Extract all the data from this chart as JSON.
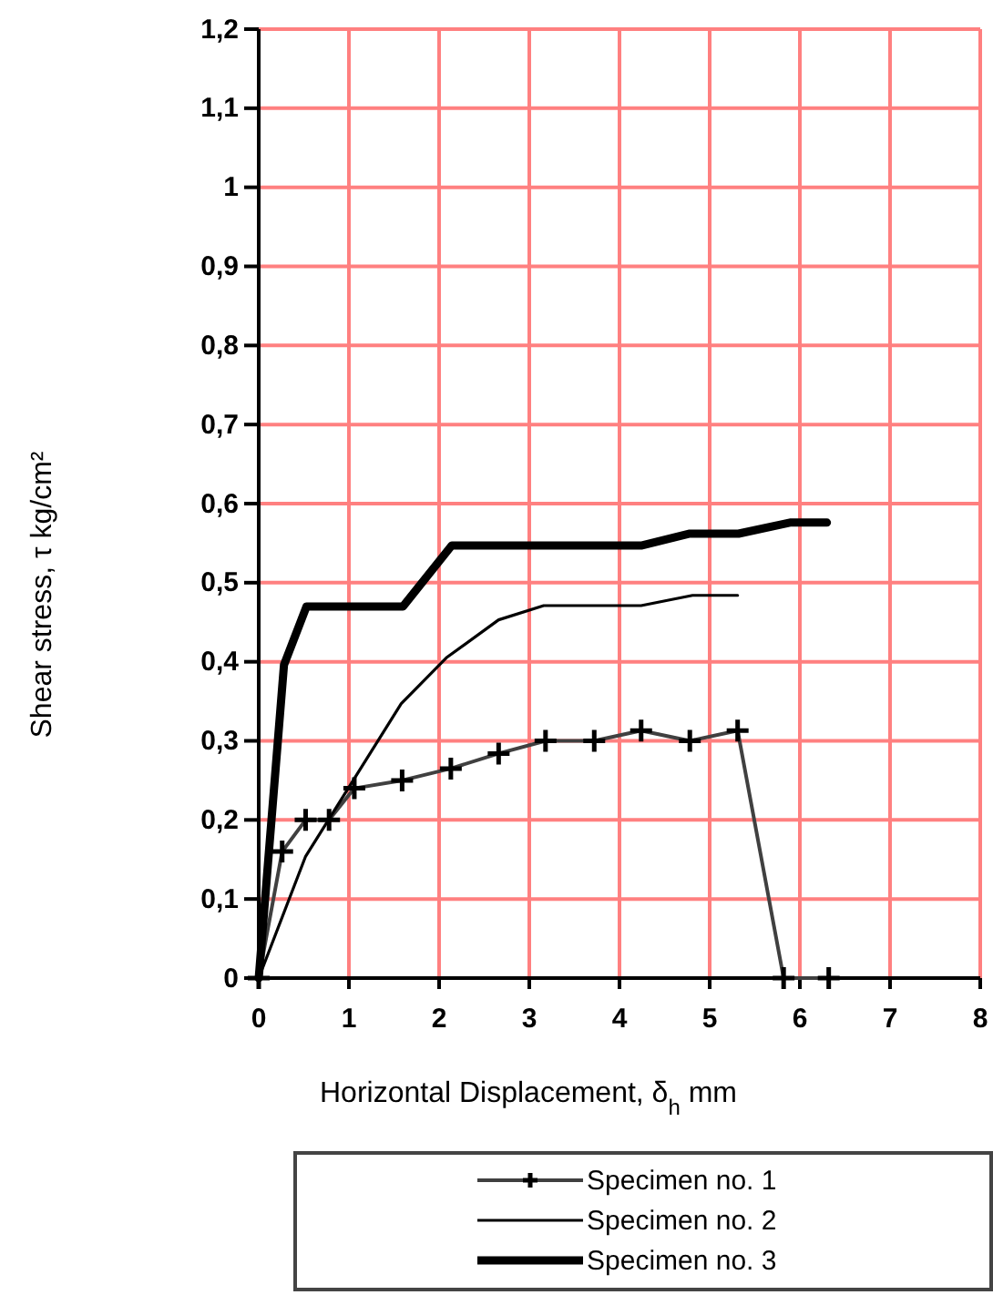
{
  "chart_data": {
    "type": "line",
    "xlabel": "Horizontal Displacement, δ$_{h}$ mm",
    "ylabel": "Shear stress, τ kg/cm²",
    "xlim": [
      0,
      8
    ],
    "xticks": [
      0,
      1,
      2,
      3,
      4,
      5,
      6,
      7,
      8
    ],
    "ylim": [
      0,
      1.2
    ],
    "yticks": [
      {
        "value": 0,
        "label": "0"
      },
      {
        "value": 0.1,
        "label": "0,1"
      },
      {
        "value": 0.2,
        "label": "0,2"
      },
      {
        "value": 0.3,
        "label": "0,3"
      },
      {
        "value": 0.4,
        "label": "0,4"
      },
      {
        "value": 0.5,
        "label": "0,5"
      },
      {
        "value": 0.6,
        "label": "0,6"
      },
      {
        "value": 0.7,
        "label": "0,7"
      },
      {
        "value": 0.8,
        "label": "0,8"
      },
      {
        "value": 0.9,
        "label": "0,9"
      },
      {
        "value": 1,
        "label": "1"
      },
      {
        "value": 1.1,
        "label": "1,1"
      },
      {
        "value": 1.2,
        "label": "1,2"
      }
    ],
    "grid": true,
    "legend": "bottom",
    "line_style": "solid",
    "series": [
      {
        "name": "Specimen no. 1",
        "color": "#404040",
        "marker": "cross",
        "x": [
          0,
          0.26,
          0.52,
          0.78,
          1.06,
          1.59,
          2.13,
          2.66,
          3.18,
          3.72,
          4.24,
          4.78,
          5.31,
          5.82,
          6.32
        ],
        "values": [
          0,
          0.16,
          0.2,
          0.2,
          0.24,
          0.25,
          0.265,
          0.284,
          0.3,
          0.3,
          0.313,
          0.3,
          0.313,
          0,
          0
        ]
      },
      {
        "name": "Specimen no. 2",
        "color": "#000000",
        "marker": "none",
        "x": [
          0,
          0.52,
          1.58,
          2.08,
          2.66,
          3.16,
          4.24,
          4.81,
          5.31
        ],
        "values": [
          0,
          0.154,
          0.347,
          0.405,
          0.453,
          0.471,
          0.471,
          0.484,
          0.484
        ]
      },
      {
        "name": "Specimen no. 3",
        "color": "#000000",
        "marker": "none",
        "x": [
          0,
          0.28,
          0.53,
          1.6,
          2.14,
          4.24,
          4.78,
          5.32,
          5.89,
          6.3
        ],
        "values": [
          0,
          0.396,
          0.47,
          0.47,
          0.547,
          0.547,
          0.562,
          0.562,
          0.576,
          0.576
        ]
      }
    ]
  }
}
